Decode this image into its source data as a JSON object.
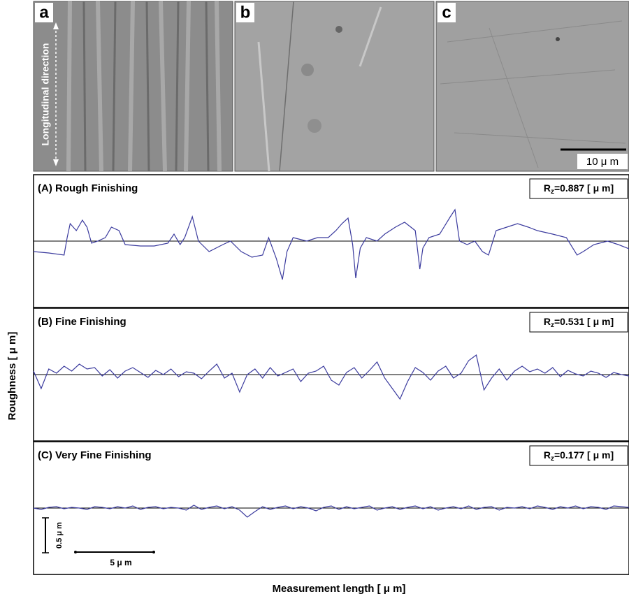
{
  "images": [
    {
      "label": "a",
      "annotation": "Longitudinal direction"
    },
    {
      "label": "b"
    },
    {
      "label": "c",
      "scale_bar": "10 μ m"
    }
  ],
  "figure": {
    "y_label": "Roughness [ μ m]",
    "x_label": "Measurement length [ μ m]",
    "scale_bars": {
      "vertical": "0.5 μ m",
      "horizontal": "5 μ m"
    }
  },
  "chart_data": [
    {
      "type": "line",
      "title": "(A) Rough Finishing",
      "rz": {
        "symbol": "R",
        "subscript": "z",
        "text": "=0.887 [ μ m]"
      },
      "color": "#3b3b9e",
      "reference_line": 0,
      "xlim": [
        0,
        39
      ],
      "ylim": [
        -0.95,
        0.95
      ],
      "x": [
        0,
        1.0,
        2.0,
        2.2,
        2.4,
        2.8,
        3.2,
        3.5,
        3.8,
        4.2,
        4.7,
        5.1,
        5.6,
        6.0,
        7.0,
        7.9,
        8.8,
        9.2,
        9.6,
        9.9,
        10.4,
        10.8,
        11.5,
        12.4,
        12.9,
        13.6,
        14.3,
        15.0,
        15.4,
        15.9,
        16.3,
        16.6,
        17.0,
        17.9,
        18.6,
        19.3,
        19.8,
        20.2,
        20.6,
        20.9,
        21.1,
        21.4,
        21.8,
        22.5,
        23.0,
        23.7,
        24.3,
        25.0,
        25.3,
        25.5,
        25.9,
        26.6,
        27.3,
        27.6,
        27.9,
        28.4,
        28.9,
        29.4,
        29.8,
        30.3,
        31.0,
        31.7,
        32.4,
        33.0,
        34.0,
        34.9,
        35.6,
        36.0,
        36.7,
        37.6,
        38.3,
        39.0
      ],
      "values": [
        -0.15,
        -0.17,
        -0.2,
        0.05,
        0.25,
        0.15,
        0.3,
        0.2,
        -0.03,
        0.0,
        0.05,
        0.2,
        0.15,
        -0.05,
        -0.07,
        -0.07,
        -0.03,
        0.1,
        -0.05,
        0.05,
        0.35,
        0.0,
        -0.15,
        -0.05,
        0.0,
        -0.15,
        -0.23,
        -0.2,
        0.05,
        -0.25,
        -0.55,
        -0.15,
        0.05,
        0.0,
        0.05,
        0.05,
        0.15,
        0.25,
        0.33,
        -0.05,
        -0.53,
        -0.1,
        0.05,
        0.0,
        0.1,
        0.2,
        0.27,
        0.15,
        -0.4,
        -0.1,
        0.05,
        0.1,
        0.35,
        0.45,
        0.0,
        -0.05,
        0.0,
        -0.15,
        -0.2,
        0.15,
        0.2,
        0.25,
        0.2,
        0.15,
        0.1,
        0.05,
        -0.2,
        -0.15,
        -0.05,
        0.0,
        -0.05,
        -0.11
      ]
    },
    {
      "type": "line",
      "title": "(B) Fine Finishing",
      "rz": {
        "symbol": "R",
        "subscript": "z",
        "text": "=0.531 [ μ m]"
      },
      "color": "#3b3b9e",
      "reference_line": 0,
      "xlim": [
        0,
        39
      ],
      "ylim": [
        -0.95,
        0.95
      ],
      "x": [
        0,
        0.5,
        1,
        1.5,
        2,
        2.5,
        3,
        3.5,
        4,
        4.5,
        5,
        5.5,
        6,
        6.5,
        7,
        7.5,
        8,
        8.5,
        9,
        9.5,
        10,
        10.5,
        11,
        11.5,
        12,
        12.5,
        13,
        13.5,
        14,
        14.5,
        15,
        15.5,
        16,
        16.5,
        17,
        17.5,
        18,
        18.5,
        19,
        19.5,
        20,
        20.5,
        21,
        21.5,
        22,
        22.5,
        23,
        23.5,
        24,
        24.5,
        25,
        25.5,
        26,
        26.5,
        27,
        27.5,
        28,
        28.5,
        29,
        29.5,
        30,
        30.5,
        31,
        31.5,
        32,
        32.5,
        33,
        33.5,
        34,
        34.5,
        35,
        35.5,
        36,
        36.5,
        37,
        37.5,
        38,
        38.5,
        39
      ],
      "values": [
        0.05,
        -0.2,
        0.08,
        0.02,
        0.12,
        0.05,
        0.15,
        0.08,
        0.1,
        -0.02,
        0.07,
        -0.05,
        0.05,
        0.1,
        0.03,
        -0.04,
        0.06,
        0.0,
        0.08,
        -0.03,
        0.04,
        0.02,
        -0.06,
        0.05,
        0.15,
        -0.05,
        0.02,
        -0.25,
        0.0,
        0.08,
        -0.05,
        0.1,
        -0.02,
        0.03,
        0.08,
        -0.1,
        0.02,
        0.05,
        0.12,
        -0.08,
        -0.15,
        0.03,
        0.1,
        -0.05,
        0.06,
        0.18,
        -0.05,
        -0.2,
        -0.35,
        -0.1,
        0.1,
        0.03,
        -0.08,
        0.05,
        0.12,
        -0.05,
        0.02,
        0.2,
        0.28,
        -0.22,
        -0.05,
        0.08,
        -0.08,
        0.05,
        0.12,
        0.04,
        0.08,
        0.02,
        0.1,
        -0.03,
        0.06,
        0.01,
        -0.02,
        0.05,
        0.02,
        -0.04,
        0.03,
        0.0,
        -0.02
      ]
    },
    {
      "type": "line",
      "title": "(C) Very Fine Finishing",
      "rz": {
        "symbol": "R",
        "subscript": "z",
        "text": "=0.177 [ μ m]"
      },
      "color": "#3b3b9e",
      "reference_line": 0,
      "xlim": [
        0,
        39
      ],
      "ylim": [
        -0.95,
        0.95
      ],
      "x": [
        0,
        0.5,
        1,
        1.5,
        2,
        2.5,
        3,
        3.5,
        4,
        4.5,
        5,
        5.5,
        6,
        6.5,
        7,
        7.5,
        8,
        8.5,
        9,
        9.5,
        10,
        10.5,
        11,
        11.5,
        12,
        12.5,
        13,
        13.5,
        14,
        14.5,
        15,
        15.5,
        16,
        16.5,
        17,
        17.5,
        18,
        18.5,
        19,
        19.5,
        20,
        20.5,
        21,
        21.5,
        22,
        22.5,
        23,
        23.5,
        24,
        24.5,
        25,
        25.5,
        26,
        26.5,
        27,
        27.5,
        28,
        28.5,
        29,
        29.5,
        30,
        30.5,
        31,
        31.5,
        32,
        32.5,
        33,
        33.5,
        34,
        34.5,
        35,
        35.5,
        36,
        36.5,
        37,
        37.5,
        38,
        38.5,
        39
      ],
      "values": [
        0.0,
        -0.02,
        0.01,
        0.02,
        -0.01,
        0.01,
        0.0,
        -0.02,
        0.02,
        0.01,
        -0.01,
        0.02,
        0.0,
        0.03,
        -0.02,
        0.01,
        0.02,
        -0.01,
        0.01,
        0.0,
        -0.03,
        0.04,
        -0.02,
        0.01,
        0.03,
        -0.01,
        0.02,
        -0.03,
        -0.13,
        -0.05,
        0.02,
        -0.02,
        0.01,
        0.03,
        -0.01,
        0.02,
        0.0,
        -0.04,
        0.01,
        0.03,
        -0.02,
        0.02,
        -0.01,
        0.01,
        0.03,
        -0.03,
        0.0,
        0.02,
        -0.02,
        0.01,
        0.03,
        -0.01,
        0.02,
        -0.03,
        0.0,
        0.02,
        -0.01,
        0.03,
        -0.02,
        0.01,
        0.02,
        -0.03,
        0.01,
        0.0,
        0.02,
        -0.01,
        0.03,
        0.01,
        -0.02,
        0.02,
        0.0,
        0.03,
        -0.01,
        0.02,
        0.01,
        -0.02,
        0.03,
        0.02,
        0.01
      ]
    }
  ]
}
